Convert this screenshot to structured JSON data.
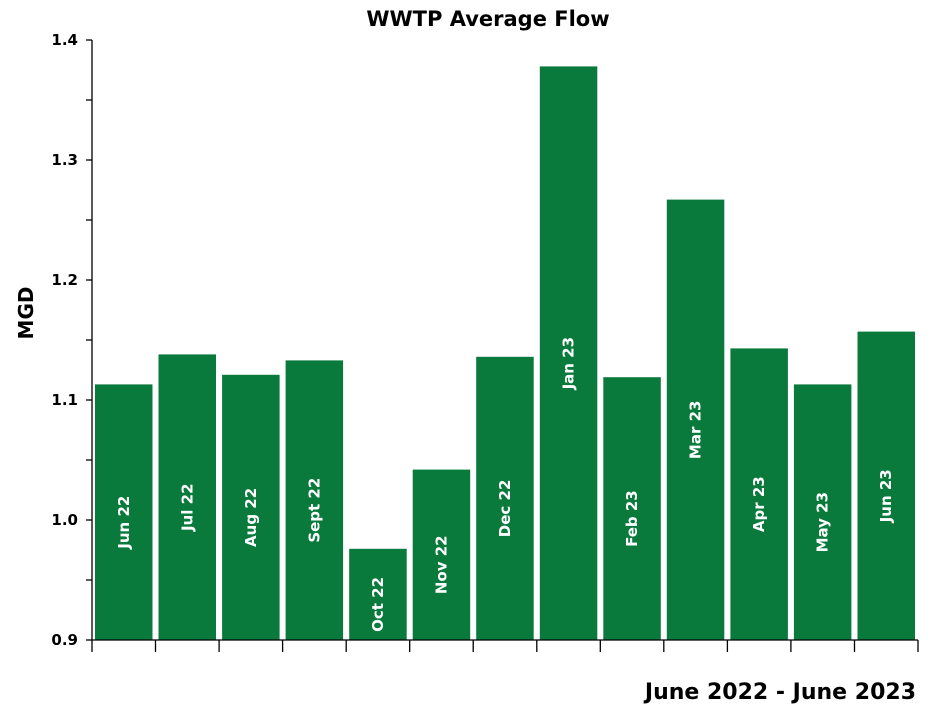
{
  "chart_data": {
    "type": "bar",
    "title": "WWTP Average Flow",
    "xlabel": "June 2022 - June 2023",
    "ylabel": "MGD",
    "ylim": [
      0.9,
      1.4
    ],
    "yticks": [
      "0.9",
      "1.0",
      "1.1",
      "1.2",
      "1.3",
      "1.4"
    ],
    "bar_color": "#0a7a3c",
    "grid": false,
    "legend": "none",
    "categories": [
      "Jun 22",
      "Jul 22",
      "Aug 22",
      "Sept 22",
      "Oct 22",
      "Nov 22",
      "Dec 22",
      "Jan 23",
      "Feb 23",
      "Mar 23",
      "Apr 23",
      "May 23",
      "Jun 23"
    ],
    "values": [
      1.113,
      1.138,
      1.121,
      1.133,
      0.976,
      1.042,
      1.136,
      1.378,
      1.119,
      1.267,
      1.143,
      1.113,
      1.157
    ]
  }
}
